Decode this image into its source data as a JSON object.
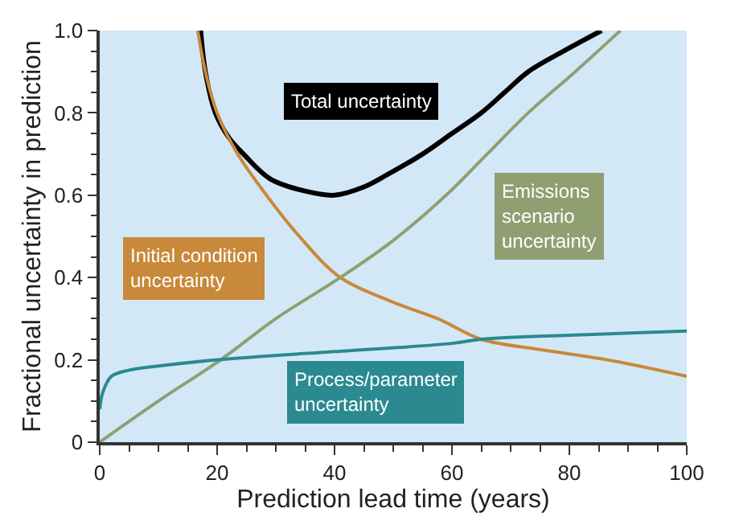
{
  "chart_data": {
    "type": "line",
    "xlabel": "Prediction lead time (years)",
    "ylabel": "Fractional uncertainty in prediction",
    "xlim": [
      0,
      100
    ],
    "ylim": [
      0,
      1
    ],
    "xticks": [
      0,
      20,
      40,
      60,
      80,
      100
    ],
    "yticks": [
      0,
      0.2,
      0.4,
      0.6,
      0.8,
      {
        "value": 1,
        "label": "1.0"
      }
    ],
    "grid": false,
    "legend": false,
    "marker": "none",
    "line_style": "solid",
    "series": [
      {
        "name": "Total uncertainty",
        "color": "#000000",
        "x": [
          17.2,
          18,
          19.7,
          22,
          24.5,
          29,
          35,
          40,
          45,
          49,
          55,
          60,
          65,
          69,
          73,
          79,
          85.5
        ],
        "values": [
          1.0,
          0.9,
          0.8,
          0.74,
          0.7,
          0.64,
          0.61,
          0.6,
          0.62,
          0.65,
          0.7,
          0.75,
          0.8,
          0.85,
          0.9,
          0.95,
          1.0
        ]
      },
      {
        "name": "Initial condition uncertainty",
        "color": "#c8893a",
        "x": [
          16.7,
          18,
          20,
          23.5,
          28.4,
          34,
          41,
          50,
          57.6,
          65,
          75,
          86.5,
          100
        ],
        "values": [
          1.0,
          0.9,
          0.8,
          0.7,
          0.6,
          0.5,
          0.4,
          0.34,
          0.3,
          0.25,
          0.225,
          0.2,
          0.16
        ]
      },
      {
        "name": "Emissions scenario uncertainty",
        "color": "#8f9f72",
        "x": [
          0,
          10,
          20.6,
          30,
          41,
          50,
          59,
          66,
          73,
          81,
          88.7
        ],
        "values": [
          0,
          0.1,
          0.2,
          0.3,
          0.4,
          0.49,
          0.6,
          0.7,
          0.8,
          0.9,
          1.0
        ]
      },
      {
        "name": "Process/parameter uncertainty",
        "color": "#2a8a90",
        "x": [
          0,
          0.5,
          2,
          5,
          10,
          20,
          40,
          60,
          65,
          80,
          100
        ],
        "values": [
          0.08,
          0.12,
          0.16,
          0.175,
          0.185,
          0.2,
          0.22,
          0.24,
          0.25,
          0.26,
          0.27
        ]
      }
    ]
  }
}
